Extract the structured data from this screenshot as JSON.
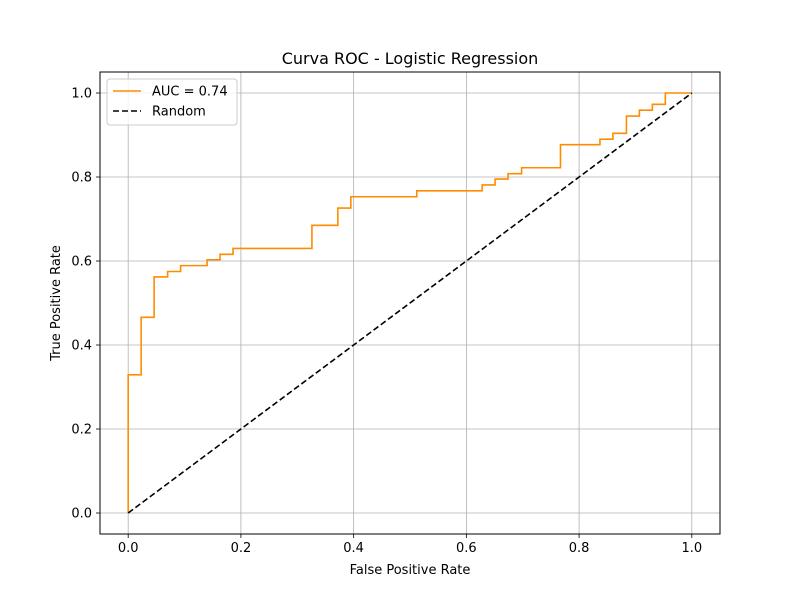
{
  "chart_data": {
    "type": "line",
    "title": "Curva ROC - Logistic Regression",
    "xlabel": "False Positive Rate",
    "ylabel": "True Positive Rate",
    "xlim": [
      -0.05,
      1.05
    ],
    "ylim": [
      -0.05,
      1.05
    ],
    "xticks": [
      "0.0",
      "0.2",
      "0.4",
      "0.6",
      "0.8",
      "1.0"
    ],
    "yticks": [
      "0.0",
      "0.2",
      "0.4",
      "0.6",
      "0.8",
      "1.0"
    ],
    "grid": true,
    "legend_position": "top-left",
    "series": [
      {
        "name": "AUC = 0.74",
        "color": "#ff8c00",
        "style": "solid",
        "step": true,
        "x": [
          0,
          0,
          0.023,
          0.023,
          0.046,
          0.046,
          0.07,
          0.07,
          0.093,
          0.093,
          0.14,
          0.14,
          0.163,
          0.163,
          0.186,
          0.186,
          0.326,
          0.326,
          0.372,
          0.372,
          0.395,
          0.395,
          0.512,
          0.512,
          0.628,
          0.628,
          0.651,
          0.651,
          0.674,
          0.674,
          0.698,
          0.698,
          0.767,
          0.767,
          0.837,
          0.837,
          0.86,
          0.86,
          0.884,
          0.884,
          0.907,
          0.907,
          0.93,
          0.93,
          0.953,
          0.953,
          1.0
        ],
        "y": [
          0,
          0.329,
          0.329,
          0.466,
          0.466,
          0.562,
          0.562,
          0.575,
          0.575,
          0.589,
          0.589,
          0.603,
          0.603,
          0.616,
          0.616,
          0.63,
          0.63,
          0.685,
          0.685,
          0.726,
          0.726,
          0.753,
          0.753,
          0.767,
          0.767,
          0.781,
          0.781,
          0.795,
          0.795,
          0.808,
          0.808,
          0.822,
          0.822,
          0.877,
          0.877,
          0.89,
          0.89,
          0.904,
          0.904,
          0.945,
          0.945,
          0.959,
          0.959,
          0.973,
          0.973,
          1.0,
          1.0
        ]
      },
      {
        "name": "Random",
        "color": "#000000",
        "style": "dashed",
        "x": [
          0,
          1
        ],
        "y": [
          0,
          1
        ]
      }
    ]
  }
}
